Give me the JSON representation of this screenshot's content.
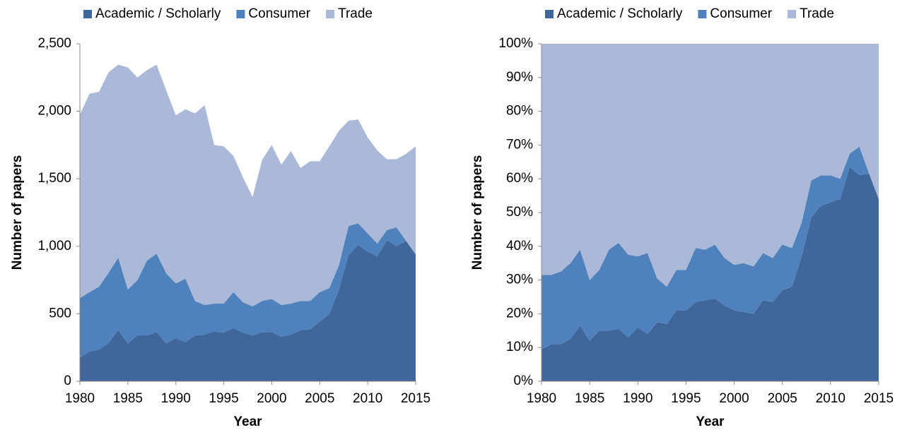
{
  "chart_data": [
    {
      "type": "stacked_area",
      "xlabel": "Year",
      "ylabel": "Number of papers",
      "x": [
        1980,
        1981,
        1982,
        1983,
        1984,
        1985,
        1986,
        1987,
        1988,
        1989,
        1990,
        1991,
        1992,
        1993,
        1994,
        1995,
        1996,
        1997,
        1998,
        1999,
        2000,
        2001,
        2002,
        2003,
        2004,
        2005,
        2006,
        2007,
        2008,
        2009,
        2010,
        2011,
        2012,
        2013,
        2014,
        2015
      ],
      "series": [
        {
          "name": "Academic / Scholarly",
          "color": "#40679a",
          "values": [
            175,
            220,
            235,
            285,
            380,
            280,
            340,
            340,
            365,
            280,
            320,
            290,
            340,
            345,
            370,
            360,
            395,
            360,
            340,
            365,
            365,
            330,
            345,
            380,
            385,
            440,
            500,
            680,
            935,
            1010,
            960,
            925,
            1045,
            1000,
            1040,
            940
          ]
        },
        {
          "name": "Consumer",
          "color": "#4f81bd",
          "values": [
            440,
            440,
            465,
            520,
            535,
            400,
            410,
            555,
            580,
            520,
            405,
            470,
            255,
            220,
            205,
            215,
            265,
            225,
            215,
            230,
            245,
            235,
            230,
            215,
            210,
            220,
            190,
            180,
            215,
            160,
            135,
            95,
            75,
            140,
            0,
            0
          ]
        },
        {
          "name": "Trade",
          "color": "#aab9d7",
          "values": [
            1360,
            1470,
            1445,
            1485,
            1430,
            1645,
            1500,
            1410,
            1400,
            1355,
            1245,
            1255,
            1390,
            1480,
            1175,
            1165,
            1010,
            925,
            810,
            1045,
            1140,
            1040,
            1130,
            985,
            1035,
            970,
            1050,
            995,
            780,
            770,
            710,
            690,
            525,
            505,
            645,
            800
          ]
        }
      ],
      "xlim": [
        1980,
        2015
      ],
      "xticks": [
        1980,
        1985,
        1990,
        1995,
        2000,
        2005,
        2010,
        2015
      ],
      "ylim": [
        0,
        2500
      ],
      "yticks": [
        0,
        500,
        {
          "value": 1000,
          "label": "1,000"
        },
        {
          "value": 1500,
          "label": "1,500"
        },
        {
          "value": 2000,
          "label": "2,000"
        },
        {
          "value": 2500,
          "label": "2,500"
        }
      ],
      "legend": "top"
    },
    {
      "type": "stacked_area",
      "xlabel": "Year",
      "ylabel": "Number of papers",
      "x": [
        1980,
        1981,
        1982,
        1983,
        1984,
        1985,
        1986,
        1987,
        1988,
        1989,
        1990,
        1991,
        1992,
        1993,
        1994,
        1995,
        1996,
        1997,
        1998,
        1999,
        2000,
        2001,
        2002,
        2003,
        2004,
        2005,
        2006,
        2007,
        2008,
        2009,
        2010,
        2011,
        2012,
        2013,
        2014,
        2015
      ],
      "series": [
        {
          "name": "Academic / Scholarly",
          "color": "#40679a",
          "values": [
            9.5,
            11,
            11,
            12.5,
            16.5,
            12,
            15,
            15,
            15.5,
            13,
            16,
            14,
            17.5,
            17,
            21,
            21,
            23.5,
            24,
            24.5,
            22.5,
            21,
            20.5,
            20,
            24,
            23.5,
            27,
            28,
            37,
            48.5,
            52,
            53,
            54,
            63.5,
            61,
            61.5,
            54
          ]
        },
        {
          "name": "Consumer",
          "color": "#4f81bd",
          "values": [
            22,
            20.5,
            21.5,
            22.5,
            22.5,
            18,
            18,
            24,
            25.5,
            24.5,
            21,
            24,
            13,
            11,
            12,
            12,
            16,
            15,
            16,
            14,
            13.5,
            14.5,
            14,
            14,
            13,
            13.5,
            11.5,
            10,
            11,
            9,
            8,
            6,
            4,
            8.5,
            0,
            0
          ]
        },
        {
          "name": "Trade",
          "color": "#aab9d7",
          "values": [
            68.5,
            68.5,
            67.5,
            65,
            61,
            70,
            67,
            61,
            59,
            62.5,
            63,
            62,
            69.5,
            72,
            67,
            67,
            60.5,
            61,
            59.5,
            63.5,
            65.5,
            65,
            66,
            62,
            63.5,
            59.5,
            60.5,
            53,
            40.5,
            39,
            39,
            40,
            32.5,
            30.5,
            38.5,
            46
          ]
        }
      ],
      "xlim": [
        1980,
        2015
      ],
      "xticks": [
        1980,
        1985,
        1990,
        1995,
        2000,
        2005,
        2010,
        2015
      ],
      "ylim": [
        0,
        100
      ],
      "yticks": [
        {
          "value": 0,
          "label": "0%"
        },
        {
          "value": 10,
          "label": "10%"
        },
        {
          "value": 20,
          "label": "20%"
        },
        {
          "value": 30,
          "label": "30%"
        },
        {
          "value": 40,
          "label": "40%"
        },
        {
          "value": 50,
          "label": "50%"
        },
        {
          "value": 60,
          "label": "60%"
        },
        {
          "value": 70,
          "label": "70%"
        },
        {
          "value": 80,
          "label": "80%"
        },
        {
          "value": 90,
          "label": "90%"
        },
        {
          "value": 100,
          "label": "100%"
        }
      ],
      "legend": "top"
    }
  ]
}
